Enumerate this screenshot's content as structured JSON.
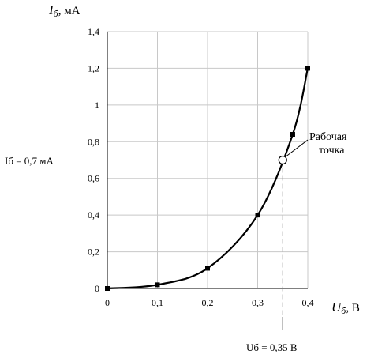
{
  "chart_data": {
    "type": "line",
    "x": [
      0,
      0.1,
      0.2,
      0.3,
      0.37,
      0.4
    ],
    "y": [
      0,
      0.02,
      0.11,
      0.4,
      0.84,
      1.2
    ],
    "xlim": [
      0,
      0.4
    ],
    "ylim": [
      0,
      1.4
    ],
    "x_ticks": [
      "0",
      "0,1",
      "0,2",
      "0,3",
      "0,4"
    ],
    "y_ticks": [
      "0",
      "0,2",
      "0,4",
      "0,6",
      "0,8",
      "1",
      "1,2",
      "1,4"
    ],
    "grid": true,
    "ylabel": {
      "main": "I",
      "sub": "б",
      "unit": ", мА"
    },
    "xlabel": {
      "main": "U",
      "sub": "б",
      "unit": ", В"
    },
    "operating_point": {
      "x": 0.35,
      "y": 0.7,
      "label_line1": "Рабочая",
      "label_line2": "точка",
      "y_annotation": "Iб = 0,7 мА",
      "x_annotation": "Uб  = 0,35 В"
    },
    "colors": {
      "line": "#000000",
      "grid": "#c8c8c8",
      "dashed": "#808080"
    }
  }
}
